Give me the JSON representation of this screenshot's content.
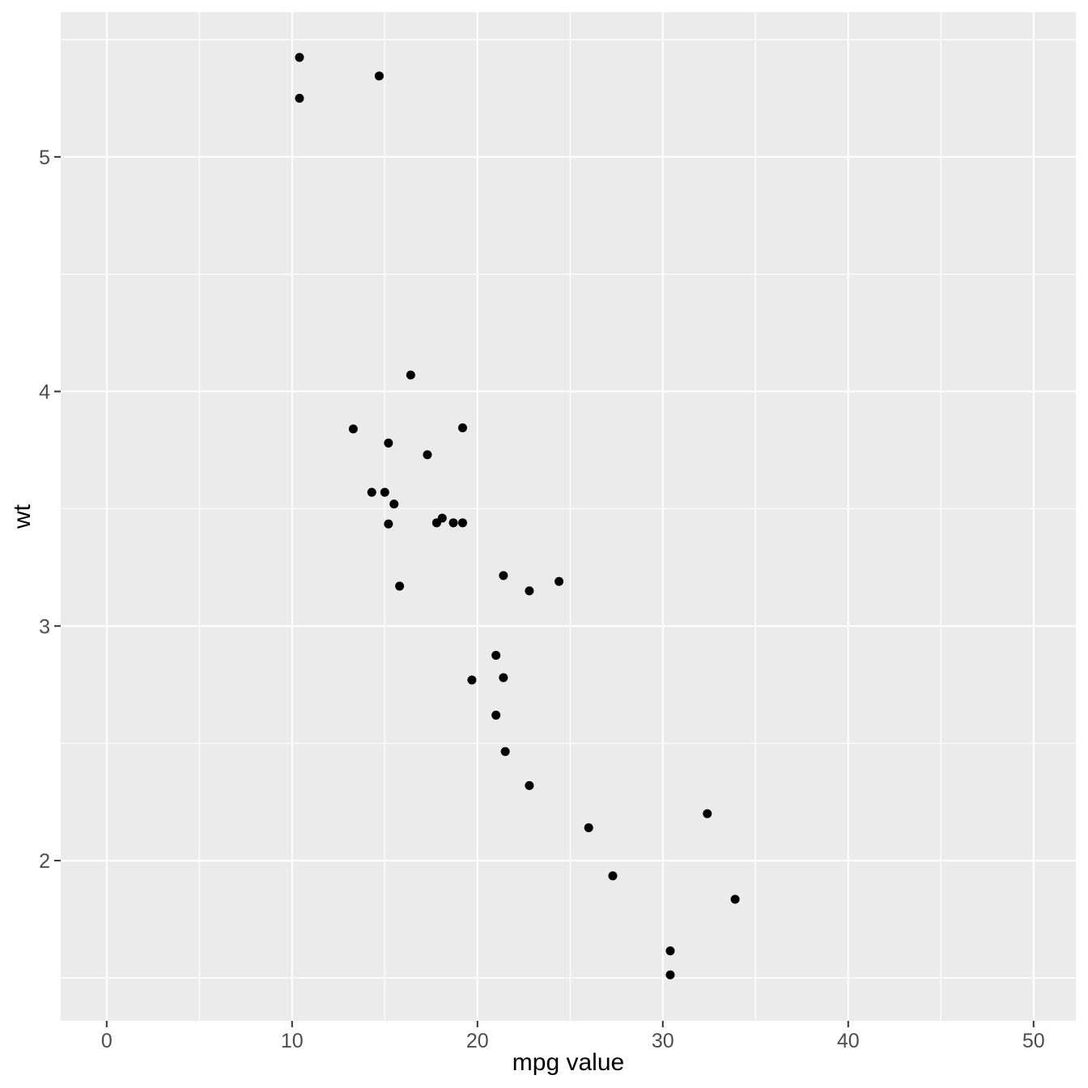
{
  "figure": {
    "background": "#FFFFFF"
  },
  "chart_data": {
    "type": "scatter",
    "title": "",
    "xlabel": "mpg value",
    "ylabel": "wt",
    "legend": "none",
    "grid": "on",
    "x_ticks": [
      0,
      10,
      20,
      30,
      40,
      50
    ],
    "y_ticks": [
      2,
      3,
      4,
      5
    ],
    "x_minor": [
      5,
      15,
      25,
      35,
      45
    ],
    "y_minor": [
      1.5,
      2.5,
      3.5,
      4.5,
      5.5
    ],
    "xlim": [
      -2.48,
      52.28
    ],
    "ylim": [
      1.317,
      5.617
    ],
    "panel_bg": "#EBEBEB",
    "grid_color": "#FFFFFF",
    "tick_color": "#333333",
    "tick_label_color": "#4D4D4D",
    "axis_title_color": "#000000",
    "point_color": "#000000",
    "points": [
      [
        21.0,
        2.62
      ],
      [
        21.0,
        2.875
      ],
      [
        22.8,
        2.32
      ],
      [
        21.4,
        3.215
      ],
      [
        18.7,
        3.44
      ],
      [
        18.1,
        3.46
      ],
      [
        14.3,
        3.57
      ],
      [
        24.4,
        3.19
      ],
      [
        22.8,
        3.15
      ],
      [
        19.2,
        3.44
      ],
      [
        17.8,
        3.44
      ],
      [
        16.4,
        4.07
      ],
      [
        17.3,
        3.73
      ],
      [
        15.2,
        3.78
      ],
      [
        10.4,
        5.25
      ],
      [
        10.4,
        5.424
      ],
      [
        14.7,
        5.345
      ],
      [
        32.4,
        2.2
      ],
      [
        30.4,
        1.615
      ],
      [
        33.9,
        1.835
      ],
      [
        21.5,
        2.465
      ],
      [
        15.5,
        3.52
      ],
      [
        15.2,
        3.435
      ],
      [
        13.3,
        3.84
      ],
      [
        19.2,
        3.845
      ],
      [
        27.3,
        1.935
      ],
      [
        26.0,
        2.14
      ],
      [
        30.4,
        1.513
      ],
      [
        15.8,
        3.17
      ],
      [
        19.7,
        2.77
      ],
      [
        15.0,
        3.57
      ],
      [
        21.4,
        2.78
      ]
    ]
  }
}
